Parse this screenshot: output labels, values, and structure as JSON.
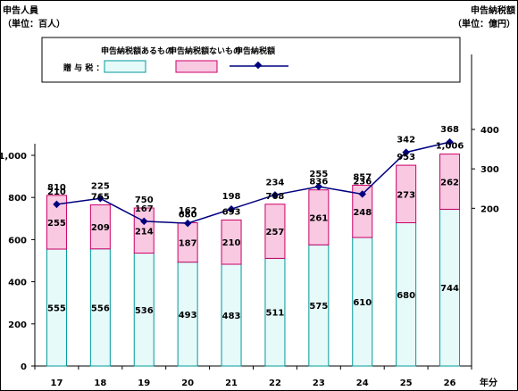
{
  "left_axis_title": "申告人員",
  "left_axis_unit": "（単位：百人）",
  "right_axis_title": "申告納税額",
  "right_axis_unit": "（単位：億円）",
  "x_axis_unit": "年分",
  "legend": {
    "row_label": "贈 与 税 ：",
    "taxpayers_with_tax": "申告納税額あるもの",
    "taxpayers_without_tax": "申告納税額ないもの",
    "tax_amount": "申告納税額"
  },
  "colors": {
    "with_tax_fill": "#e6fafa",
    "with_tax_stroke": "#009999",
    "without_tax_fill": "#f9c9e2",
    "without_tax_stroke": "#cc0066",
    "line": "#00007f"
  },
  "chart_data": {
    "type": "bar",
    "stacked": true,
    "categories": [
      "17",
      "18",
      "19",
      "20",
      "21",
      "22",
      "23",
      "24",
      "25",
      "26"
    ],
    "series": [
      {
        "name": "申告納税額あるもの",
        "axis": "left",
        "values": [
          555,
          556,
          536,
          493,
          483,
          511,
          575,
          610,
          680,
          744
        ]
      },
      {
        "name": "申告納税額ないもの",
        "axis": "left",
        "values": [
          255,
          209,
          214,
          187,
          210,
          257,
          261,
          248,
          273,
          262
        ]
      },
      {
        "name": "申告納税額",
        "type": "line",
        "axis": "right",
        "values": [
          210,
          225,
          167,
          162,
          198,
          234,
          255,
          236,
          342,
          368
        ]
      }
    ],
    "totals": [
      "810",
      "765",
      "750",
      "680",
      "693",
      "768",
      "836",
      "857",
      "953",
      "1,006"
    ],
    "left_axis": {
      "ylim": [
        0,
        1000
      ],
      "ticks": [
        "0",
        "200",
        "400",
        "600",
        "800",
        "1,000"
      ]
    },
    "right_axis": {
      "visible_ticks": [
        "200",
        "300",
        "400"
      ],
      "ylim": [
        -200,
        400
      ]
    },
    "grid": false,
    "legend_position": "top-left"
  }
}
